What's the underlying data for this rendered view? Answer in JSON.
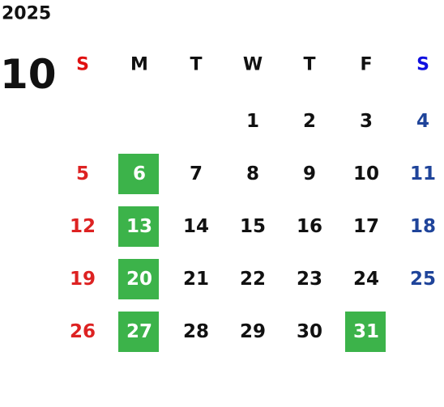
{
  "year": "2025",
  "month": "10",
  "weekdays": [
    "S",
    "M",
    "T",
    "W",
    "T",
    "F",
    "S"
  ],
  "weeks": [
    [
      null,
      null,
      null,
      {
        "day": "1",
        "highlight": false
      },
      {
        "day": "2",
        "highlight": false
      },
      {
        "day": "3",
        "highlight": false
      },
      {
        "day": "4",
        "highlight": false
      }
    ],
    [
      {
        "day": "5",
        "highlight": false
      },
      {
        "day": "6",
        "highlight": true
      },
      {
        "day": "7",
        "highlight": false
      },
      {
        "day": "8",
        "highlight": false
      },
      {
        "day": "9",
        "highlight": false
      },
      {
        "day": "10",
        "highlight": false
      },
      {
        "day": "11",
        "highlight": false
      }
    ],
    [
      {
        "day": "12",
        "highlight": false
      },
      {
        "day": "13",
        "highlight": true
      },
      {
        "day": "14",
        "highlight": false
      },
      {
        "day": "15",
        "highlight": false
      },
      {
        "day": "16",
        "highlight": false
      },
      {
        "day": "17",
        "highlight": false
      },
      {
        "day": "18",
        "highlight": false
      }
    ],
    [
      {
        "day": "19",
        "highlight": false
      },
      {
        "day": "20",
        "highlight": true
      },
      {
        "day": "21",
        "highlight": false
      },
      {
        "day": "22",
        "highlight": false
      },
      {
        "day": "23",
        "highlight": false
      },
      {
        "day": "24",
        "highlight": false
      },
      {
        "day": "25",
        "highlight": false
      }
    ],
    [
      {
        "day": "26",
        "highlight": false
      },
      {
        "day": "27",
        "highlight": true
      },
      {
        "day": "28",
        "highlight": false
      },
      {
        "day": "29",
        "highlight": false
      },
      {
        "day": "30",
        "highlight": false
      },
      {
        "day": "31",
        "highlight": true
      },
      null
    ]
  ]
}
